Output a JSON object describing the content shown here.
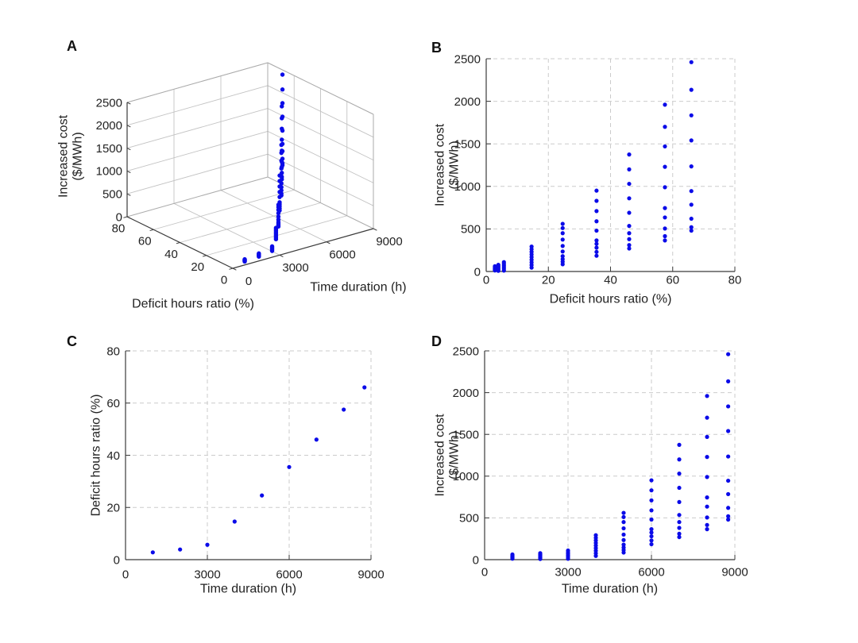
{
  "figure": {
    "background": "#ffffff",
    "marker_color": "#0b0be8",
    "grid2d_color": "#cbcbcb",
    "grid3d_color": "#c3c3c3",
    "box3d_color": "#ababab",
    "axis_color": "#3b3b3b",
    "text_color": "#222222"
  },
  "chart_data": {
    "type": "scatter",
    "marker_color": "#0b0be8",
    "groups": [
      {
        "time": 1000,
        "ratio": 2.8,
        "costs": [
          12,
          22,
          32,
          42,
          52,
          62
        ]
      },
      {
        "time": 2000,
        "ratio": 3.9,
        "costs": [
          8,
          22,
          36,
          50,
          64,
          78
        ]
      },
      {
        "time": 3000,
        "ratio": 5.7,
        "costs": [
          10,
          30,
          50,
          70,
          90,
          110
        ]
      },
      {
        "time": 4000,
        "ratio": 14.6,
        "costs": [
          45,
          76,
          107,
          138,
          169,
          200,
          231,
          262,
          293
        ]
      },
      {
        "time": 5000,
        "ratio": 24.6,
        "costs": [
          85,
          115,
          145,
          180,
          235,
          300,
          375,
          450,
          510,
          560
        ]
      },
      {
        "time": 6000,
        "ratio": 35.5,
        "costs": [
          185,
          230,
          280,
          325,
          365,
          480,
          590,
          710,
          830,
          950
        ]
      },
      {
        "time": 7000,
        "ratio": 46.0,
        "costs": [
          270,
          310,
          380,
          450,
          535,
          690,
          860,
          1030,
          1200,
          1375
        ]
      },
      {
        "time": 8000,
        "ratio": 57.5,
        "costs": [
          365,
          415,
          505,
          635,
          745,
          990,
          1230,
          1470,
          1700,
          1960
        ]
      },
      {
        "time": 8760,
        "ratio": 66.0,
        "costs": [
          480,
          520,
          620,
          785,
          945,
          1235,
          1540,
          1835,
          2135,
          2460
        ]
      }
    ],
    "panels": [
      {
        "label": "A",
        "type": "scatter3d",
        "xlabel": "Deficit hours ratio (%)",
        "ylabel": "Time duration (h)",
        "zlabel": "Increased cost ($/MWh)",
        "zlabel_lines": [
          "Increased cost",
          "($/MWh)"
        ],
        "xlim": [
          0,
          80
        ],
        "ylim": [
          0,
          9000
        ],
        "zlim": [
          0,
          2500
        ],
        "xticks": [
          0,
          20,
          40,
          60,
          80
        ],
        "yticks": [
          0,
          3000,
          6000,
          9000
        ],
        "zticks": [
          0,
          500,
          1000,
          1500,
          2000,
          2500
        ],
        "grid": true,
        "points_def": "x=ratio, y=time, z=each cost in groups"
      },
      {
        "label": "B",
        "type": "scatter",
        "xlabel": "Deficit hours ratio (%)",
        "ylabel": "Increased cost ($/MWh)",
        "ylabel_lines": [
          "Increased cost",
          "($/MWh)"
        ],
        "xlim": [
          0,
          80
        ],
        "ylim": [
          0,
          2500
        ],
        "xticks": [
          0,
          20,
          40,
          60,
          80
        ],
        "yticks": [
          0,
          500,
          1000,
          1500,
          2000,
          2500
        ],
        "grid": "dashed",
        "points_def": "x=ratio, y=each cost in groups"
      },
      {
        "label": "C",
        "type": "scatter",
        "xlabel": "Time duration (h)",
        "ylabel": "Deficit hours ratio (%)",
        "ylabel_lines": [
          "Deficit hours ratio (%)"
        ],
        "xlim": [
          0,
          9000
        ],
        "ylim": [
          0,
          80
        ],
        "xticks": [
          0,
          3000,
          6000,
          9000
        ],
        "yticks": [
          0,
          20,
          40,
          60,
          80
        ],
        "grid": "dashed",
        "points_def": "x=time, y=ratio per group"
      },
      {
        "label": "D",
        "type": "scatter",
        "xlabel": "Time duration (h)",
        "ylabel": "Increased cost ($/MWh)",
        "ylabel_lines": [
          "Increased cost",
          "($/MWh)"
        ],
        "xlim": [
          0,
          9000
        ],
        "ylim": [
          0,
          2500
        ],
        "xticks": [
          0,
          3000,
          6000,
          9000
        ],
        "yticks": [
          0,
          500,
          1000,
          1500,
          2000,
          2500
        ],
        "grid": "dashed",
        "points_def": "x=time, y=each cost in groups"
      }
    ]
  }
}
